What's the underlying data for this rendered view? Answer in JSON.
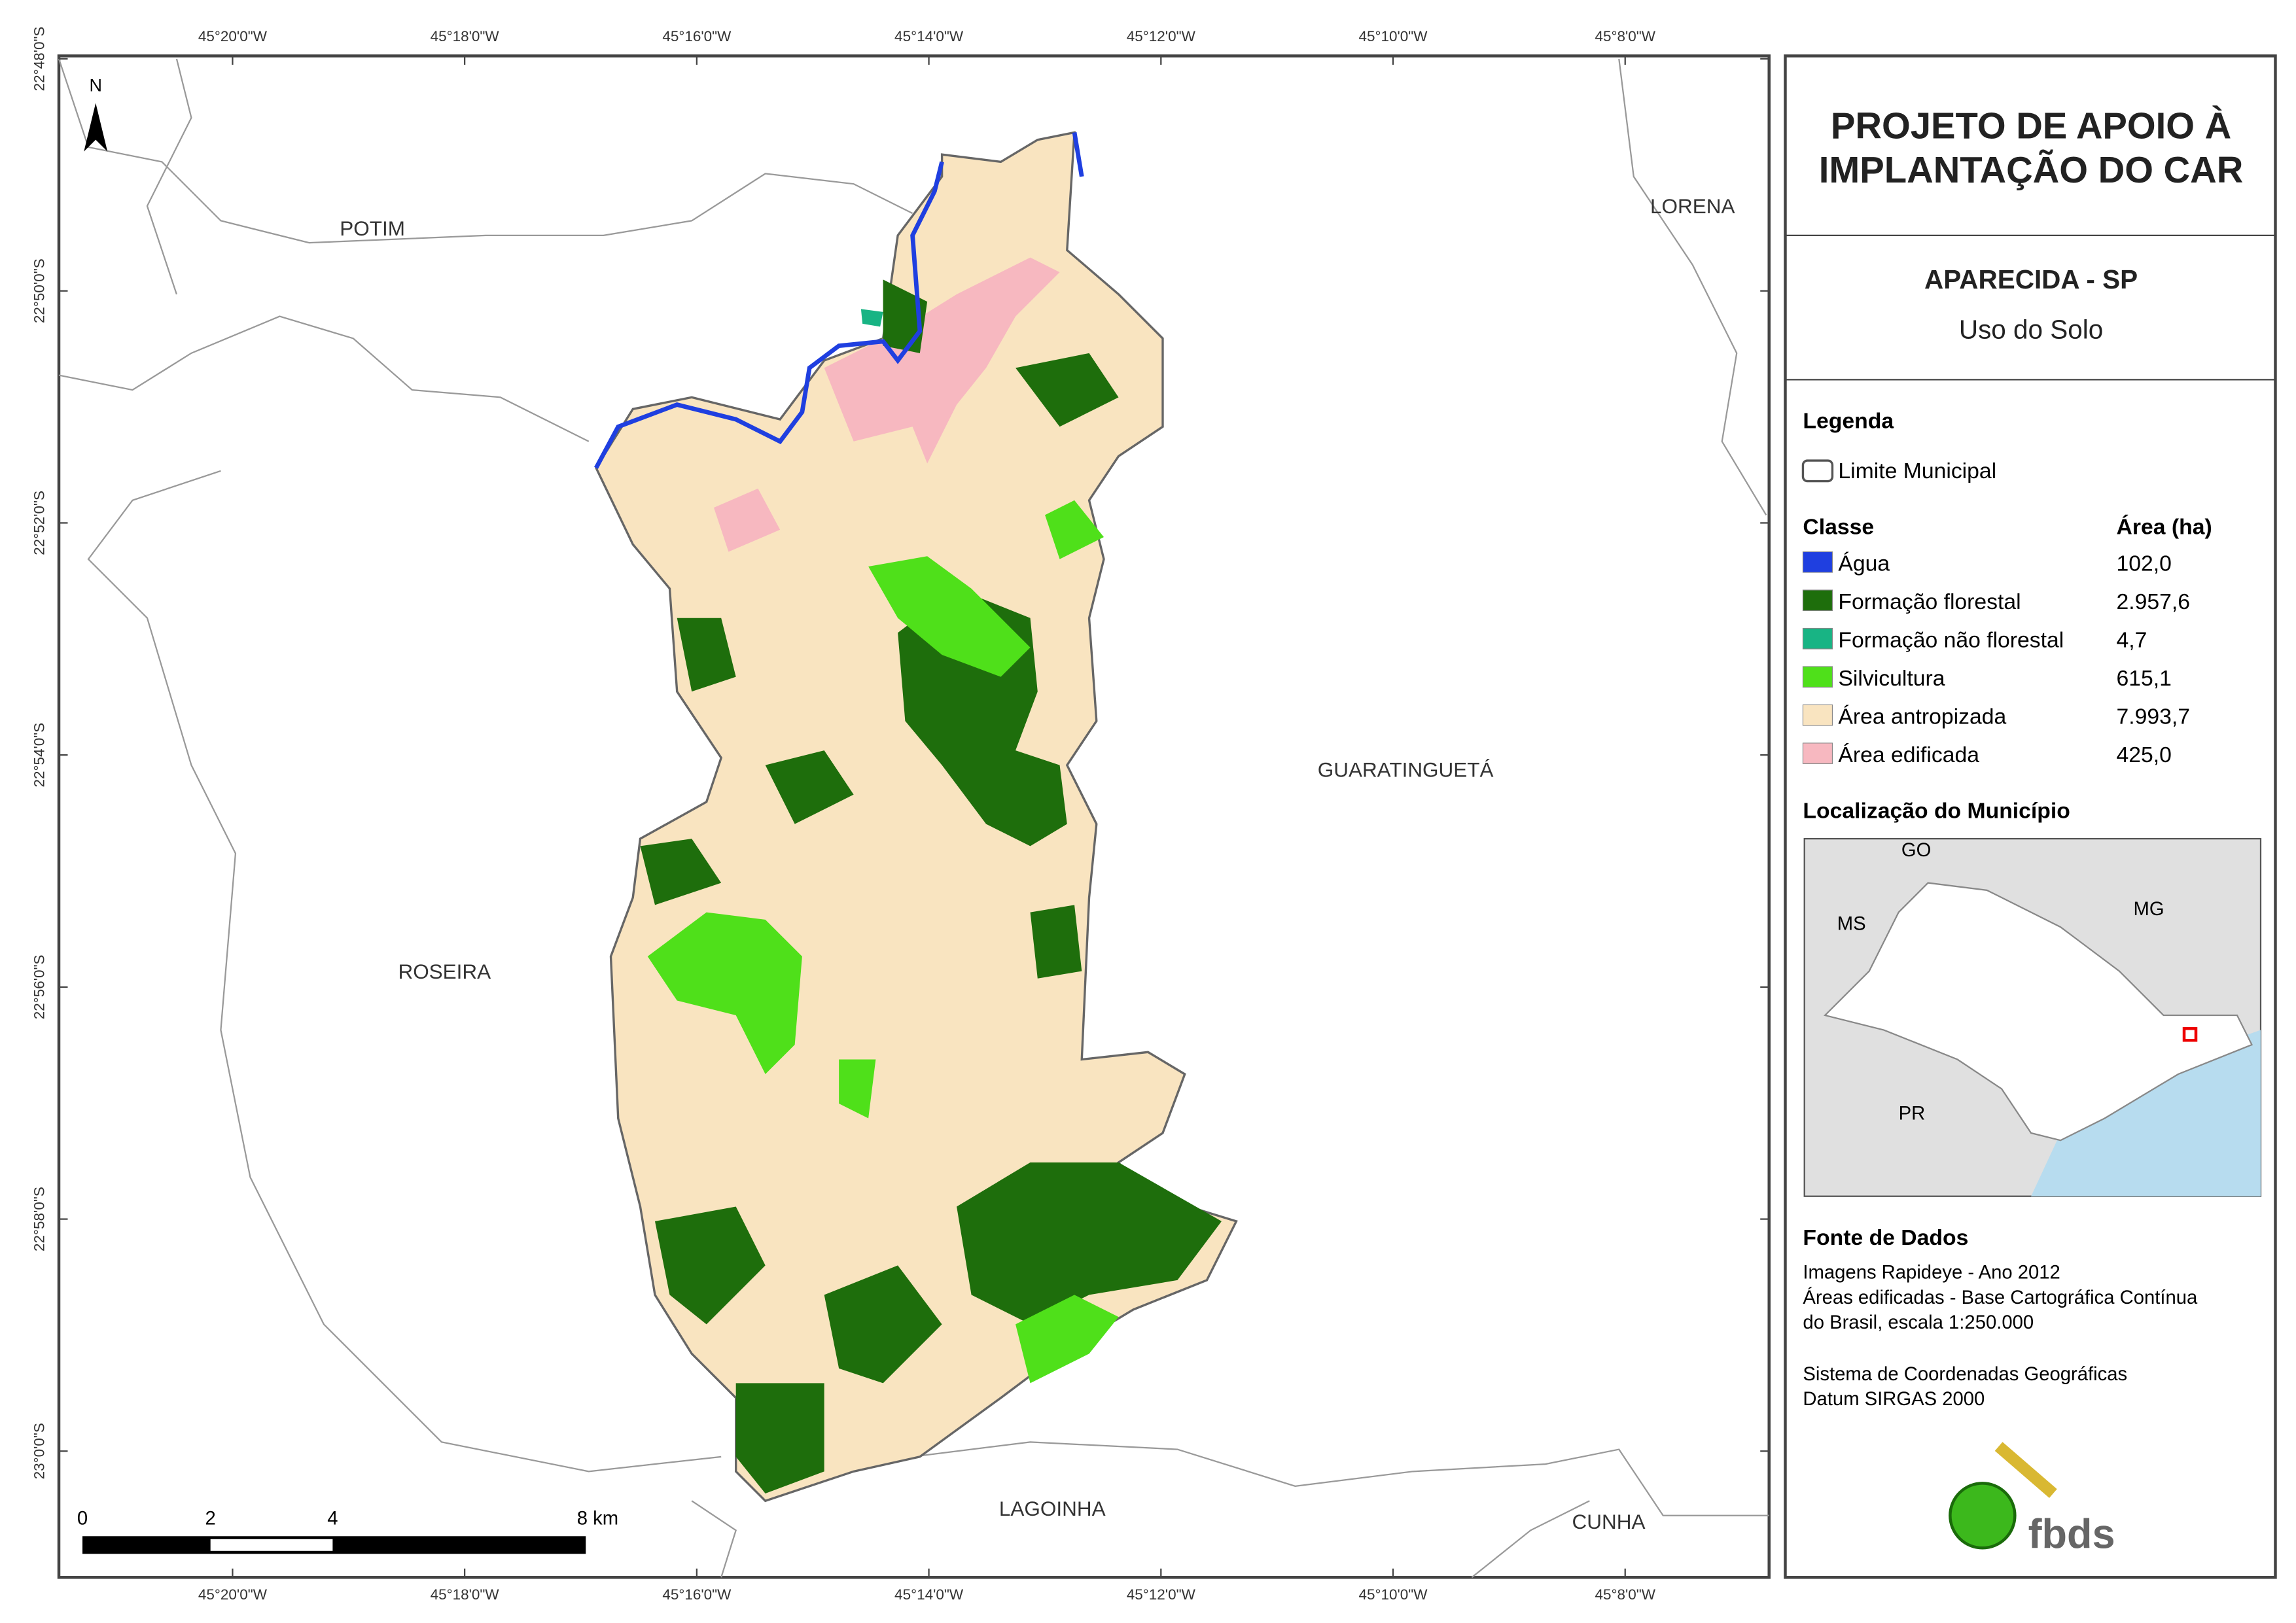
{
  "map": {
    "north": "N",
    "longitude_labels": [
      "45°20'0\"W",
      "45°18'0\"W",
      "45°16'0\"W",
      "45°14'0\"W",
      "45°12'0\"W",
      "45°10'0\"W",
      "45°8'0\"W"
    ],
    "latitude_labels": [
      "22°48'0\"S",
      "22°50'0\"S",
      "22°52'0\"S",
      "22°54'0\"S",
      "22°56'0\"S",
      "22°58'0\"S",
      "23°0'0\"S"
    ],
    "places": [
      "POTIM",
      "LORENA",
      "GUARATINGUETÁ",
      "ROSEIRA",
      "LAGOINHA",
      "CUNHA"
    ],
    "scale_bar": [
      "0",
      "2",
      "4",
      "8 km"
    ]
  },
  "panel": {
    "title": [
      "PROJETO DE APOIO À",
      "IMPLANTAÇÃO DO CAR"
    ],
    "municipality": "APARECIDA - SP",
    "theme": "Uso do Solo",
    "legend": {
      "heading": "Legenda",
      "boundary": "Limite Municipal",
      "class_header": "Classe",
      "area_header": "Área (ha)",
      "items": [
        {
          "name": "Água",
          "color": "#1f3fe0",
          "area": "102,0"
        },
        {
          "name": "Formação florestal",
          "color": "#1e6e0c",
          "area": "2.957,6"
        },
        {
          "name": "Formação não florestal",
          "color": "#18b484",
          "area": "4,7"
        },
        {
          "name": "Silvicultura",
          "color": "#4fe01a",
          "area": "615,1"
        },
        {
          "name": "Área antropizada",
          "color": "#f9e4c0",
          "area": "7.993,7"
        },
        {
          "name": "Área edificada",
          "color": "#f7b8c0",
          "area": "425,0"
        }
      ]
    },
    "location": {
      "heading": "Localização do Município",
      "labels": [
        "GO",
        "MS",
        "MG",
        "PR"
      ]
    },
    "sources": {
      "heading": "Fonte de Dados",
      "lines": [
        "Imagens Rapideye - Ano 2012",
        "Áreas edificadas - Base Cartográfica Contínua",
        "do Brasil, escala 1:250.000",
        "Sistema de Coordenadas Geográficas",
        "Datum SIRGAS 2000"
      ]
    },
    "logo": "fbds"
  }
}
